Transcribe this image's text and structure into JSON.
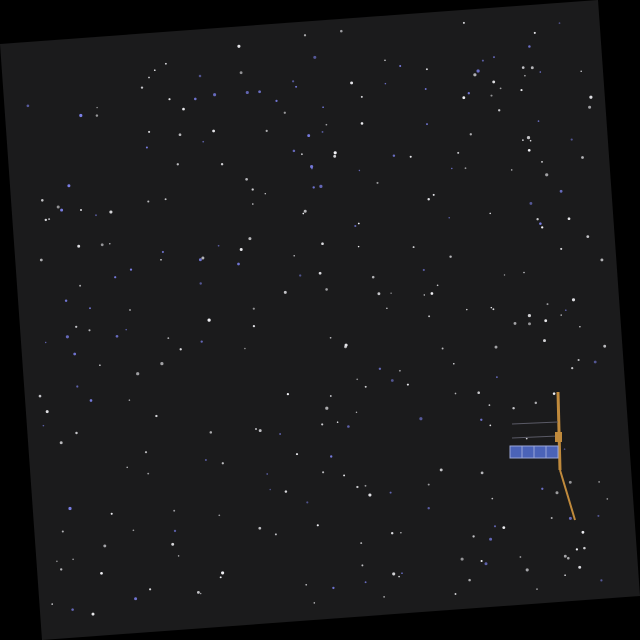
{
  "scene": {
    "subject": "satellite",
    "colors": {
      "outer_background": "#000000",
      "sky": "#1b1b1c",
      "star_white": "#f4f4f8",
      "star_blue": "#7b80e8",
      "solar_panel": "#4b63b8",
      "solar_panel_edge": "#9aa6d8",
      "satellite_body": "#c08a3c",
      "satellite_frame": "#5a5a66"
    }
  }
}
